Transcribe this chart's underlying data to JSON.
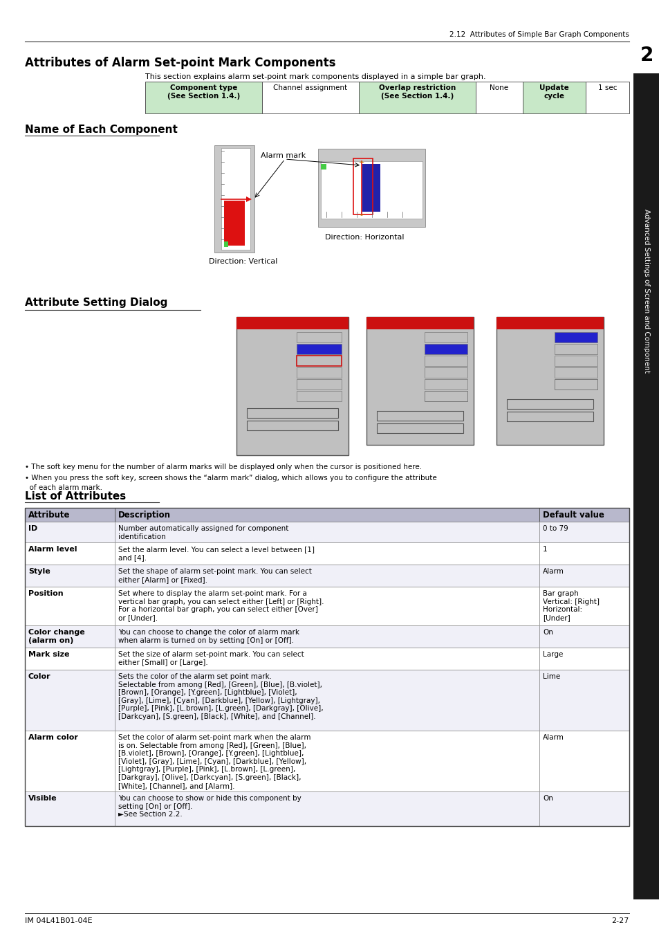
{
  "page_header": "2.12  Attributes of Simple Bar Graph Components",
  "section_title": "Attributes of Alarm Set-point Mark Components",
  "section_intro": "This section explains alarm set-point mark components displayed in a simple bar graph.",
  "comp_table_labels": [
    "Component type\n(See Section 1.4.)",
    "Channel assignment",
    "Overlap restriction\n(See Section 1.4.)",
    "None",
    "Update\ncycle",
    "1 sec"
  ],
  "comp_table_bg": [
    "#c8e8c8",
    "#ffffff",
    "#c8e8c8",
    "#ffffff",
    "#c8e8c8",
    "#ffffff"
  ],
  "comp_table_bold": [
    true,
    false,
    true,
    false,
    true,
    false
  ],
  "name_section_title": "Name of Each Component",
  "alarm_mark_label": "Alarm mark",
  "direction_horizontal": "Direction: Horizontal",
  "direction_vertical": "Direction: Vertical",
  "attr_dialog_title": "Attribute Setting Dialog",
  "dialog_note1": "• The soft key menu for the number of alarm marks will be displayed only when the cursor is positioned here.",
  "dialog_note2": "• When you press the soft key, screen shows the “alarm mark” dialog, which allows you to configure the attribute",
  "dialog_note2b": "  of each alarm mark.",
  "list_title": "List of Attributes",
  "table_headers": [
    "Attribute",
    "Description",
    "Default value"
  ],
  "table_rows": [
    [
      "ID",
      "Number automatically assigned for component\nidentification",
      "0 to 79"
    ],
    [
      "Alarm level",
      "Set the alarm level. You can select a level between [1]\nand [4].",
      "1"
    ],
    [
      "Style",
      "Set the shape of alarm set-point mark. You can select\neither [Alarm] or [Fixed].",
      "Alarm"
    ],
    [
      "Position",
      "Set where to display the alarm set-point mark. For a\nvertical bar graph, you can select either [Left] or [Right].\nFor a horizontal bar graph, you can select either [Over]\nor [Under].",
      "Bar graph\nVertical: [Right]\nHorizontal:\n[Under]"
    ],
    [
      "Color change\n(alarm on)",
      "You can choose to change the color of alarm mark\nwhen alarm is turned on by setting [On] or [Off].",
      "On"
    ],
    [
      "Mark size",
      "Set the size of alarm set-point mark. You can select\neither [Small] or [Large].",
      "Large"
    ],
    [
      "Color",
      "Sets the color of the alarm set point mark.\nSelectable from among [Red], [Green], [Blue], [B.violet],\n[Brown], [Orange], [Y.green], [Lightblue], [Violet],\n[Gray], [Lime], [Cyan], [Darkblue], [Yellow], [Lightgray],\n[Purple], [Pink], [L.brown], [L.green], [Darkgray], [Olive],\n[Darkcyan], [S.green], [Black], [White], and [Channel].",
      "Lime"
    ],
    [
      "Alarm color",
      "Set the color of alarm set-point mark when the alarm\nis on. Selectable from among [Red], [Green], [Blue],\n[B.violet], [Brown], [Orange], [Y.green], [Lightblue],\n[Violet], [Gray], [Lime], [Cyan], [Darkblue], [Yellow],\n[Lightgray], [Purple], [Pink], [L.brown], [L.green],\n[Darkgray], [Olive], [Darkcyan], [S.green], [Black],\n[White], [Channel], and [Alarm].",
      "Alarm"
    ],
    [
      "Visible",
      "You can choose to show or hide this component by\nsetting [On] or [Off].\n►See Section 2.2.",
      "On"
    ]
  ],
  "sidebar_text": "Advanced Settings of Screen and Component",
  "sidebar_number": "2",
  "footer_left": "IM 04L41B01-04E",
  "footer_right": "2-27"
}
